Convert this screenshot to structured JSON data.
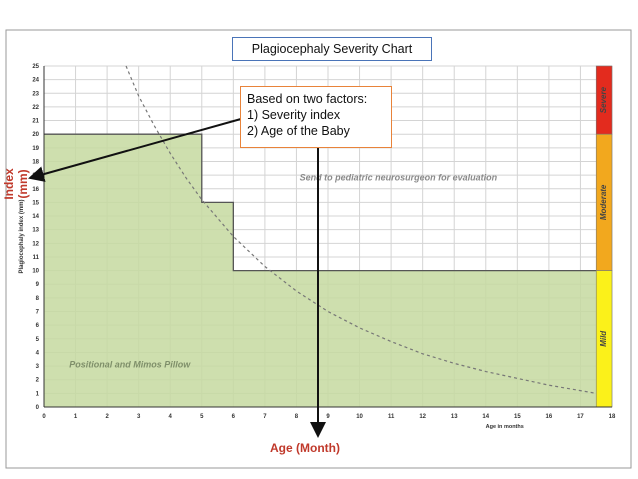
{
  "title": "Plagiocephaly Severity Chart",
  "note": {
    "heading": "Based on two factors:",
    "items": [
      "1)  Severity index",
      "2)  Age of the Baby"
    ]
  },
  "red_axis_labels": {
    "y": "Index (mm)",
    "x": "Age (Month)"
  },
  "chart_data": {
    "type": "area",
    "xlabel": "Age in months",
    "ylabel": "Plagiocephaly index (mm)",
    "xlim": [
      0,
      18
    ],
    "ylim": [
      0,
      25
    ],
    "x_ticks": [
      0,
      1,
      2,
      3,
      4,
      5,
      6,
      7,
      8,
      9,
      10,
      11,
      12,
      13,
      14,
      15,
      16,
      17,
      18
    ],
    "y_ticks": [
      0,
      1,
      2,
      3,
      4,
      5,
      6,
      7,
      8,
      9,
      10,
      11,
      12,
      13,
      14,
      15,
      16,
      17,
      18,
      19,
      20,
      21,
      22,
      23,
      24,
      25
    ],
    "grid": true,
    "treatment_threshold_step": {
      "x": [
        0,
        5,
        5,
        6,
        6,
        17.5
      ],
      "y": [
        20,
        20,
        15,
        15,
        10,
        10
      ]
    },
    "decay_curve_dashed": {
      "x": [
        2.6,
        3,
        3.5,
        4,
        4.5,
        5,
        6,
        7,
        8,
        9,
        10,
        11,
        12,
        13,
        14,
        15,
        16,
        17,
        17.5
      ],
      "y": [
        25,
        22.8,
        20.6,
        18.6,
        16.8,
        15.2,
        12.5,
        10.3,
        8.5,
        7.0,
        5.8,
        4.8,
        3.9,
        3.2,
        2.6,
        2.1,
        1.6,
        1.2,
        1.0
      ]
    },
    "regions": [
      {
        "label": "Positional and Mimos Pillow",
        "color": "#c6d9a0"
      },
      {
        "label": "Send to pediatric neurosurgeon for evaluation",
        "color": "#ffffff"
      }
    ],
    "severity_bands": [
      {
        "label": "Severe",
        "from": 20,
        "to": 25,
        "color": "#e32b1e"
      },
      {
        "label": "Moderate",
        "from": 10,
        "to": 20,
        "color": "#f2a81e"
      },
      {
        "label": "Mild",
        "from": 0,
        "to": 10,
        "color": "#fbf11a"
      }
    ],
    "annotation_arrows": [
      {
        "target": "y-axis",
        "meaning": "Index (mm)"
      },
      {
        "target": "x-axis",
        "meaning": "Age (Month)"
      }
    ]
  }
}
